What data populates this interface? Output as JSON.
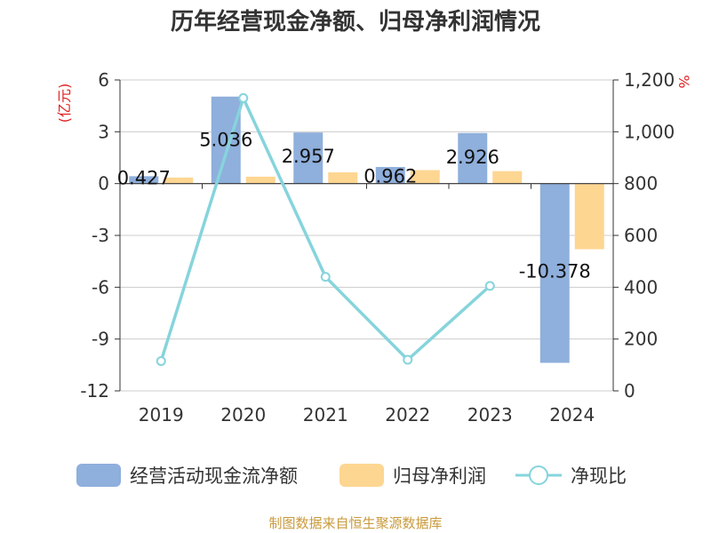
{
  "chart_data": {
    "type": "bar",
    "title": "历年经营现金净额、归母净利润情况",
    "categories": [
      "2019",
      "2020",
      "2021",
      "2022",
      "2023",
      "2024"
    ],
    "left_axis": {
      "unit": "(亿元)",
      "ylim": [
        -12,
        6
      ],
      "ticks": [
        6,
        3,
        0,
        -3,
        -6,
        -9,
        -12
      ]
    },
    "right_axis": {
      "unit": "%",
      "ylim": [
        0,
        1200
      ],
      "ticks": [
        "1,200",
        "1,000",
        "800",
        "600",
        "400",
        "200",
        "0"
      ]
    },
    "series": [
      {
        "name": "经营活动现金流净额",
        "type": "bar",
        "axis": "left",
        "color": "#8fafdc",
        "values": [
          0.427,
          5.036,
          2.957,
          0.962,
          2.926,
          -10.378
        ],
        "labels": [
          "0.427",
          "5.036",
          "2.957",
          "0.962",
          "2.926",
          "-10.378"
        ]
      },
      {
        "name": "归母净利润",
        "type": "bar",
        "axis": "left",
        "color": "#fdd692",
        "values": [
          0.35,
          0.4,
          0.65,
          0.78,
          0.72,
          -3.8
        ]
      },
      {
        "name": "净现比",
        "type": "line",
        "axis": "right",
        "color": "#86d4dc",
        "values": [
          115,
          1130,
          440,
          120,
          405,
          null
        ]
      }
    ],
    "source": "制图数据来自恒生聚源数据库"
  }
}
